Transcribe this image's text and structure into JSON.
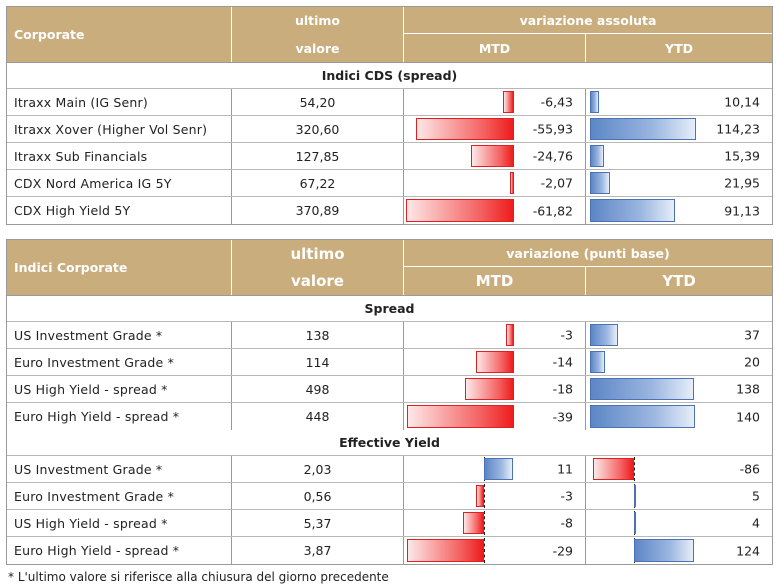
{
  "table1": {
    "header": {
      "name": "Corporate",
      "value_line1": "ultimo",
      "value_line2": "valore",
      "group": "variazione assoluta",
      "mtd": "MTD",
      "ytd": "YTD"
    },
    "section": "Indici CDS (spread)",
    "rows": [
      {
        "name": "Itraxx Main (IG Senr)",
        "value": "54,20",
        "mtd": "-6,43",
        "ytd": "10,14",
        "mtd_num": -6.43,
        "ytd_num": 10.14
      },
      {
        "name": "Itraxx Xover (Higher Vol Senr)",
        "value": "320,60",
        "mtd": "-55,93",
        "ytd": "114,23",
        "mtd_num": -55.93,
        "ytd_num": 114.23
      },
      {
        "name": "Itraxx Sub Financials",
        "value": "127,85",
        "mtd": "-24,76",
        "ytd": "15,39",
        "mtd_num": -24.76,
        "ytd_num": 15.39
      },
      {
        "name": "CDX Nord America IG 5Y",
        "value": "67,22",
        "mtd": "-2,07",
        "ytd": "21,95",
        "mtd_num": -2.07,
        "ytd_num": 21.95
      },
      {
        "name": "CDX High Yield 5Y",
        "value": "370,89",
        "mtd": "-61,82",
        "ytd": "91,13",
        "mtd_num": -61.82,
        "ytd_num": 91.13
      }
    ]
  },
  "table2": {
    "header": {
      "name": "Indici Corporate",
      "value_line1": "ultimo",
      "value_line2": "valore",
      "group": "variazione (punti base)",
      "mtd": "MTD",
      "ytd": "YTD"
    },
    "section_spread": "Spread",
    "spread_rows": [
      {
        "name": "US Investment Grade *",
        "value": "138",
        "mtd": "-3",
        "ytd": "37",
        "mtd_num": -3,
        "ytd_num": 37
      },
      {
        "name": "Euro Investment Grade *",
        "value": "114",
        "mtd": "-14",
        "ytd": "20",
        "mtd_num": -14,
        "ytd_num": 20
      },
      {
        "name": "US High Yield  - spread *",
        "value": "498",
        "mtd": "-18",
        "ytd": "138",
        "mtd_num": -18,
        "ytd_num": 138
      },
      {
        "name": "Euro High Yield  - spread *",
        "value": "448",
        "mtd": "-39",
        "ytd": "140",
        "mtd_num": -39,
        "ytd_num": 140
      }
    ],
    "section_yield": "Effective Yield",
    "yield_rows": [
      {
        "name": "US Investment Grade *",
        "value": "2,03",
        "mtd": "11",
        "ytd": "-86",
        "mtd_num": 11,
        "ytd_num": -86
      },
      {
        "name": "Euro Investment Grade *",
        "value": "0,56",
        "mtd": "-3",
        "ytd": "5",
        "mtd_num": -3,
        "ytd_num": 5
      },
      {
        "name": "US High Yield  - spread *",
        "value": "5,37",
        "mtd": "-8",
        "ytd": "4",
        "mtd_num": -8,
        "ytd_num": 4
      },
      {
        "name": "Euro High Yield  - spread *",
        "value": "3,87",
        "mtd": "-29",
        "ytd": "124",
        "mtd_num": -29,
        "ytd_num": 124
      }
    ]
  },
  "footnote": "* L'ultimo valore si riferisce alla chiusura del giorno precedente",
  "colors": {
    "header_bg": "#c9ad7c",
    "negative": "#ee1c1c",
    "positive": "#5d86c6"
  }
}
